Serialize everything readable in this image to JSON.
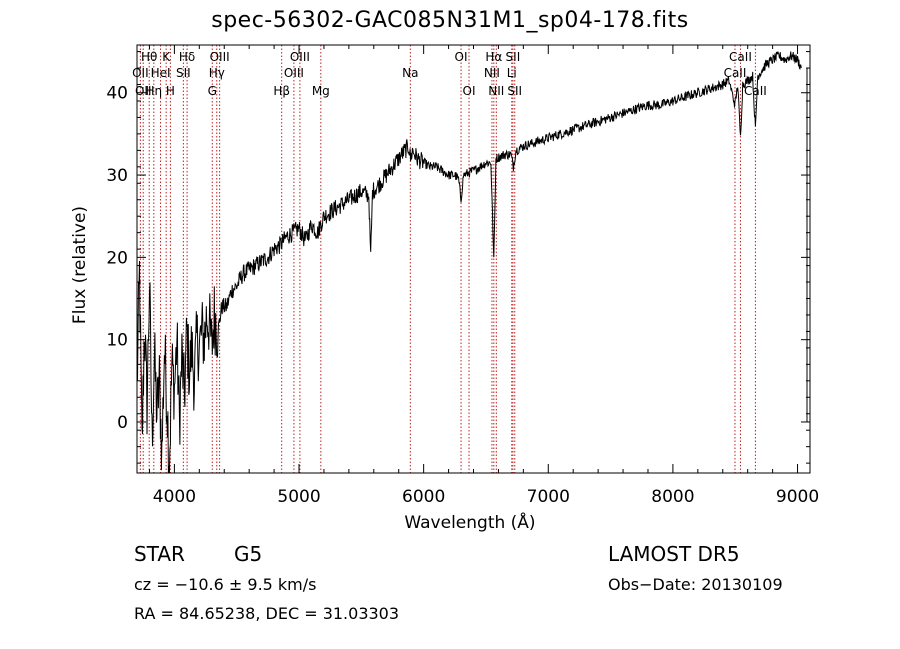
{
  "chart_data": {
    "type": "line",
    "title": "spec-56302-GAC085N31M1_sp04-178.fits",
    "xlabel": "Wavelength (Å)",
    "ylabel": "Flux (relative)",
    "xlim": [
      3700,
      9100
    ],
    "ylim": [
      -6.2,
      45.8
    ],
    "xticks": [
      4000,
      5000,
      6000,
      7000,
      8000,
      9000
    ],
    "yticks": [
      0,
      10,
      20,
      30,
      40
    ],
    "grid": false,
    "series": [
      {
        "points": [
          [
            3700,
            4
          ],
          [
            3720,
            18
          ],
          [
            3740,
            -3
          ],
          [
            3760,
            12
          ],
          [
            3780,
            2
          ],
          [
            3800,
            17
          ],
          [
            3820,
            -2
          ],
          [
            3840,
            8
          ],
          [
            3860,
            1
          ],
          [
            3880,
            5
          ],
          [
            3900,
            -4
          ],
          [
            3920,
            9
          ],
          [
            3940,
            3
          ],
          [
            3960,
            -5
          ],
          [
            3980,
            7
          ],
          [
            4000,
            4
          ],
          [
            4020,
            10
          ],
          [
            4040,
            0
          ],
          [
            4060,
            8
          ],
          [
            4080,
            3
          ],
          [
            4100,
            11
          ],
          [
            4120,
            6
          ],
          [
            4140,
            9
          ],
          [
            4160,
            5
          ],
          [
            4180,
            10
          ],
          [
            4200,
            9
          ],
          [
            4220,
            11
          ],
          [
            4240,
            10
          ],
          [
            4260,
            13
          ],
          [
            4280,
            12
          ],
          [
            4300,
            9
          ],
          [
            4320,
            13
          ],
          [
            4350,
            11
          ],
          [
            4380,
            14
          ],
          [
            4420,
            14
          ],
          [
            4460,
            16
          ],
          [
            4500,
            16.5
          ],
          [
            4550,
            18
          ],
          [
            4600,
            18.5
          ],
          [
            4650,
            19
          ],
          [
            4700,
            19.5
          ],
          [
            4750,
            20
          ],
          [
            4800,
            21
          ],
          [
            4850,
            21.5
          ],
          [
            4900,
            22.5
          ],
          [
            4950,
            23
          ],
          [
            5000,
            23.5
          ],
          [
            5050,
            22
          ],
          [
            5100,
            24
          ],
          [
            5150,
            23
          ],
          [
            5200,
            25
          ],
          [
            5250,
            25.5
          ],
          [
            5300,
            26
          ],
          [
            5350,
            26.5
          ],
          [
            5400,
            27
          ],
          [
            5450,
            27.5
          ],
          [
            5500,
            28
          ],
          [
            5560,
            27.5
          ],
          [
            5575,
            20
          ],
          [
            5590,
            28
          ],
          [
            5650,
            29
          ],
          [
            5700,
            30
          ],
          [
            5750,
            31
          ],
          [
            5800,
            32
          ],
          [
            5850,
            33
          ],
          [
            5880,
            33.5
          ],
          [
            5895,
            32
          ],
          [
            5910,
            33
          ],
          [
            5950,
            32
          ],
          [
            6000,
            31.5
          ],
          [
            6050,
            31
          ],
          [
            6100,
            31
          ],
          [
            6150,
            30.5
          ],
          [
            6200,
            30
          ],
          [
            6250,
            30
          ],
          [
            6280,
            29.5
          ],
          [
            6300,
            27
          ],
          [
            6320,
            30
          ],
          [
            6400,
            30.5
          ],
          [
            6450,
            31
          ],
          [
            6500,
            31.5
          ],
          [
            6540,
            31.5
          ],
          [
            6563,
            19.5
          ],
          [
            6580,
            32
          ],
          [
            6650,
            32.5
          ],
          [
            6700,
            32.5
          ],
          [
            6720,
            31
          ],
          [
            6740,
            33
          ],
          [
            6800,
            33.5
          ],
          [
            6900,
            34
          ],
          [
            7000,
            34.5
          ],
          [
            7100,
            35
          ],
          [
            7200,
            35.5
          ],
          [
            7300,
            36
          ],
          [
            7400,
            36.5
          ],
          [
            7500,
            37
          ],
          [
            7600,
            37.5
          ],
          [
            7700,
            38
          ],
          [
            7800,
            38.5
          ],
          [
            7900,
            38.5
          ],
          [
            8000,
            39
          ],
          [
            8100,
            39.5
          ],
          [
            8200,
            40
          ],
          [
            8300,
            40.5
          ],
          [
            8400,
            41
          ],
          [
            8450,
            41.5
          ],
          [
            8498,
            38.5
          ],
          [
            8520,
            41
          ],
          [
            8542,
            34.5
          ],
          [
            8560,
            41
          ],
          [
            8600,
            41.5
          ],
          [
            8640,
            42
          ],
          [
            8662,
            35.5
          ],
          [
            8680,
            42
          ],
          [
            8750,
            43.5
          ],
          [
            8800,
            44
          ],
          [
            8850,
            44.5
          ],
          [
            8900,
            44
          ],
          [
            8950,
            44.5
          ],
          [
            9000,
            44
          ],
          [
            9030,
            43
          ]
        ]
      }
    ],
    "lines": [
      {
        "wavelength": 3727,
        "label": "OII",
        "row": 2
      },
      {
        "wavelength": 3750,
        "label": "OII",
        "row": 3
      },
      {
        "wavelength": 3798,
        "label": "Hθ",
        "row": 1
      },
      {
        "wavelength": 3835,
        "label": "Hη",
        "row": 3
      },
      {
        "wavelength": 3889,
        "label": "HeI",
        "row": 2
      },
      {
        "wavelength": 3934,
        "label": "K",
        "row": 1
      },
      {
        "wavelength": 3968,
        "label": "H",
        "row": 3
      },
      {
        "wavelength": 4072,
        "label": "SII",
        "row": 2
      },
      {
        "wavelength": 4102,
        "label": "Hδ",
        "row": 1
      },
      {
        "wavelength": 4304,
        "label": "G",
        "row": 3
      },
      {
        "wavelength": 4340,
        "label": "Hγ",
        "row": 2
      },
      {
        "wavelength": 4363,
        "label": "OIII",
        "row": 1
      },
      {
        "wavelength": 4861,
        "label": "Hβ",
        "row": 3
      },
      {
        "wavelength": 4959,
        "label": "OIII",
        "row": 2
      },
      {
        "wavelength": 5007,
        "label": "OIII",
        "row": 1
      },
      {
        "wavelength": 5175,
        "label": "Mg",
        "row": 3
      },
      {
        "wavelength": 5893,
        "label": "Na",
        "row": 2
      },
      {
        "wavelength": 6300,
        "label": "OI",
        "row": 1
      },
      {
        "wavelength": 6364,
        "label": "OI",
        "row": 3
      },
      {
        "wavelength": 6548,
        "label": "NII",
        "row": 2
      },
      {
        "wavelength": 6563,
        "label": "Hα",
        "row": 1
      },
      {
        "wavelength": 6583,
        "label": "NII",
        "row": 3
      },
      {
        "wavelength": 6707,
        "label": "Li",
        "row": 2
      },
      {
        "wavelength": 6716,
        "label": "SII",
        "row": 1
      },
      {
        "wavelength": 6731,
        "label": "SII",
        "row": 3
      },
      {
        "wavelength": 8498,
        "label": "CaII",
        "row": 2
      },
      {
        "wavelength": 8542,
        "label": "CaII",
        "row": 1
      },
      {
        "wavelength": 8662,
        "label": "CaII",
        "row": 3
      }
    ],
    "line_color": "#c02020"
  },
  "info": {
    "class": "STAR",
    "subclass": "G5",
    "survey": "LAMOST  DR5",
    "cz": "cz = −10.6 ± 9.5 km/s",
    "obs_date": "Obs−Date: 20130109",
    "coords": "RA =  84.65238, DEC =  31.03303"
  }
}
